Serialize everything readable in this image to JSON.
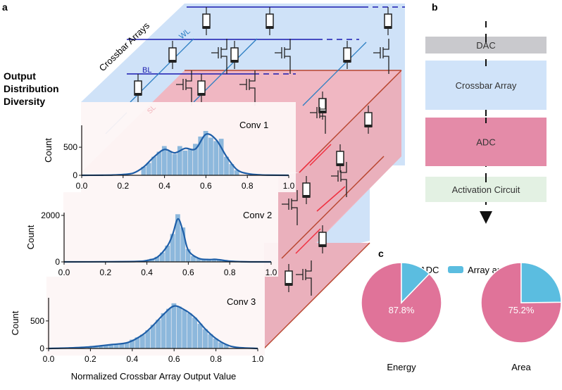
{
  "panels": {
    "a": "a",
    "b": "b",
    "c": "c"
  },
  "panel_a": {
    "side_title": [
      "Output",
      "Distribution",
      "Diversity"
    ],
    "crossbar_label": "Crossbar Arrays",
    "wl_label": "WL",
    "bl_label": "BL",
    "sl_label": "SL",
    "xlabel": "Normalized Crossbar Array Output Value"
  },
  "panel_b": {
    "blocks": [
      {
        "label": "DAC",
        "color": "#c9c9cd"
      },
      {
        "label": "Crossbar Array",
        "color": "#d0e3f9"
      },
      {
        "label": "ADC",
        "color": "#e48ba8"
      },
      {
        "label": "Activation Circuit",
        "color": "#e3f1e3"
      }
    ]
  },
  "colors": {
    "hist_bar": "#8db8dc",
    "kde_line": "#1f5fa8",
    "blue_plane": "#cfe2f8",
    "pink_plane": "#f0b7c2",
    "adc": "#e07399",
    "others": "#5bbde0"
  },
  "chart_data": [
    {
      "type": "bar",
      "title": "Conv 1",
      "ylabel": "Count",
      "xlim": [
        0,
        1.0
      ],
      "ylim": [
        0,
        890
      ],
      "xticks": [
        "0.0",
        "0.2",
        "0.4",
        "0.6",
        "0.8",
        "1.0"
      ],
      "yticks": [
        "0",
        "500"
      ],
      "ytick_values": [
        0,
        500
      ],
      "hist_bin_width": 0.025,
      "hist": [
        [
          0.3,
          150
        ],
        [
          0.325,
          220
        ],
        [
          0.35,
          330
        ],
        [
          0.375,
          420
        ],
        [
          0.4,
          520
        ],
        [
          0.425,
          430
        ],
        [
          0.45,
          380
        ],
        [
          0.475,
          520
        ],
        [
          0.5,
          440
        ],
        [
          0.525,
          460
        ],
        [
          0.55,
          560
        ],
        [
          0.575,
          690
        ],
        [
          0.6,
          790
        ],
        [
          0.625,
          670
        ],
        [
          0.65,
          610
        ],
        [
          0.675,
          650
        ],
        [
          0.7,
          330
        ],
        [
          0.725,
          200
        ],
        [
          0.75,
          90
        ]
      ],
      "kde": [
        [
          0,
          0
        ],
        [
          0.1,
          2
        ],
        [
          0.15,
          5
        ],
        [
          0.2,
          15
        ],
        [
          0.25,
          40
        ],
        [
          0.3,
          150
        ],
        [
          0.35,
          330
        ],
        [
          0.4,
          460
        ],
        [
          0.45,
          400
        ],
        [
          0.5,
          480
        ],
        [
          0.55,
          470
        ],
        [
          0.6,
          730
        ],
        [
          0.65,
          630
        ],
        [
          0.7,
          330
        ],
        [
          0.75,
          100
        ],
        [
          0.8,
          30
        ],
        [
          0.85,
          10
        ],
        [
          0.9,
          3
        ],
        [
          1.0,
          0
        ]
      ]
    },
    {
      "type": "bar",
      "title": "Conv 2",
      "ylabel": "Count",
      "xlim": [
        0,
        1.0
      ],
      "ylim": [
        0,
        2120
      ],
      "xticks": [
        "0.0",
        "0.2",
        "0.4",
        "0.6",
        "0.8",
        "1.0"
      ],
      "yticks": [
        "0",
        "2000"
      ],
      "ytick_values": [
        0,
        2000
      ],
      "hist_bin_width": 0.025,
      "hist": [
        [
          0.4,
          80
        ],
        [
          0.425,
          140
        ],
        [
          0.45,
          220
        ],
        [
          0.475,
          400
        ],
        [
          0.5,
          700
        ],
        [
          0.525,
          1200
        ],
        [
          0.55,
          2050
        ],
        [
          0.575,
          1480
        ],
        [
          0.6,
          550
        ],
        [
          0.625,
          250
        ],
        [
          0.65,
          150
        ],
        [
          0.675,
          110
        ],
        [
          0.7,
          110
        ],
        [
          0.725,
          120
        ],
        [
          0.75,
          80
        ],
        [
          0.775,
          40
        ]
      ],
      "kde": [
        [
          0,
          0
        ],
        [
          0.2,
          5
        ],
        [
          0.35,
          20
        ],
        [
          0.4,
          60
        ],
        [
          0.45,
          200
        ],
        [
          0.5,
          700
        ],
        [
          0.525,
          1200
        ],
        [
          0.55,
          1850
        ],
        [
          0.575,
          1300
        ],
        [
          0.6,
          500
        ],
        [
          0.65,
          150
        ],
        [
          0.7,
          100
        ],
        [
          0.725,
          110
        ],
        [
          0.75,
          90
        ],
        [
          0.8,
          30
        ],
        [
          0.85,
          10
        ],
        [
          0.9,
          0
        ],
        [
          1.0,
          0
        ]
      ]
    },
    {
      "type": "bar",
      "title": "Conv 3",
      "ylabel": "Count",
      "xlim": [
        0,
        1.0
      ],
      "ylim": [
        0,
        920
      ],
      "xticks": [
        "0.0",
        "0.2",
        "0.4",
        "0.6",
        "0.8",
        "1.0"
      ],
      "yticks": [
        "0",
        "500"
      ],
      "ytick_values": [
        0,
        500
      ],
      "hist_bin_width": 0.025,
      "hist": [
        [
          0.2,
          30
        ],
        [
          0.225,
          40
        ],
        [
          0.25,
          45
        ],
        [
          0.275,
          60
        ],
        [
          0.3,
          70
        ],
        [
          0.325,
          80
        ],
        [
          0.35,
          95
        ],
        [
          0.375,
          110
        ],
        [
          0.4,
          160
        ],
        [
          0.425,
          200
        ],
        [
          0.45,
          250
        ],
        [
          0.475,
          330
        ],
        [
          0.5,
          430
        ],
        [
          0.525,
          520
        ],
        [
          0.55,
          640
        ],
        [
          0.575,
          720
        ],
        [
          0.6,
          820
        ],
        [
          0.625,
          760
        ],
        [
          0.65,
          700
        ],
        [
          0.675,
          640
        ],
        [
          0.7,
          560
        ],
        [
          0.725,
          450
        ],
        [
          0.75,
          350
        ],
        [
          0.775,
          260
        ],
        [
          0.8,
          180
        ],
        [
          0.825,
          110
        ],
        [
          0.85,
          70
        ]
      ],
      "kde": [
        [
          0,
          0
        ],
        [
          0.1,
          10
        ],
        [
          0.2,
          30
        ],
        [
          0.3,
          70
        ],
        [
          0.38,
          110
        ],
        [
          0.45,
          250
        ],
        [
          0.5,
          420
        ],
        [
          0.55,
          620
        ],
        [
          0.6,
          770
        ],
        [
          0.65,
          700
        ],
        [
          0.7,
          560
        ],
        [
          0.75,
          350
        ],
        [
          0.8,
          180
        ],
        [
          0.85,
          70
        ],
        [
          0.9,
          20
        ],
        [
          1.0,
          0
        ]
      ]
    },
    {
      "type": "pie",
      "title": "Energy",
      "slices": [
        {
          "name": "ADC",
          "value": 87.8,
          "label": "87.8%"
        },
        {
          "name": "Array and Others",
          "value": 12.2
        }
      ]
    },
    {
      "type": "pie",
      "title": "Area",
      "slices": [
        {
          "name": "ADC",
          "value": 75.2,
          "label": "75.2%"
        },
        {
          "name": "Array and Others",
          "value": 24.8
        }
      ]
    }
  ],
  "legend": {
    "placement": "top",
    "items": [
      "ADC",
      "Array and Others"
    ]
  }
}
